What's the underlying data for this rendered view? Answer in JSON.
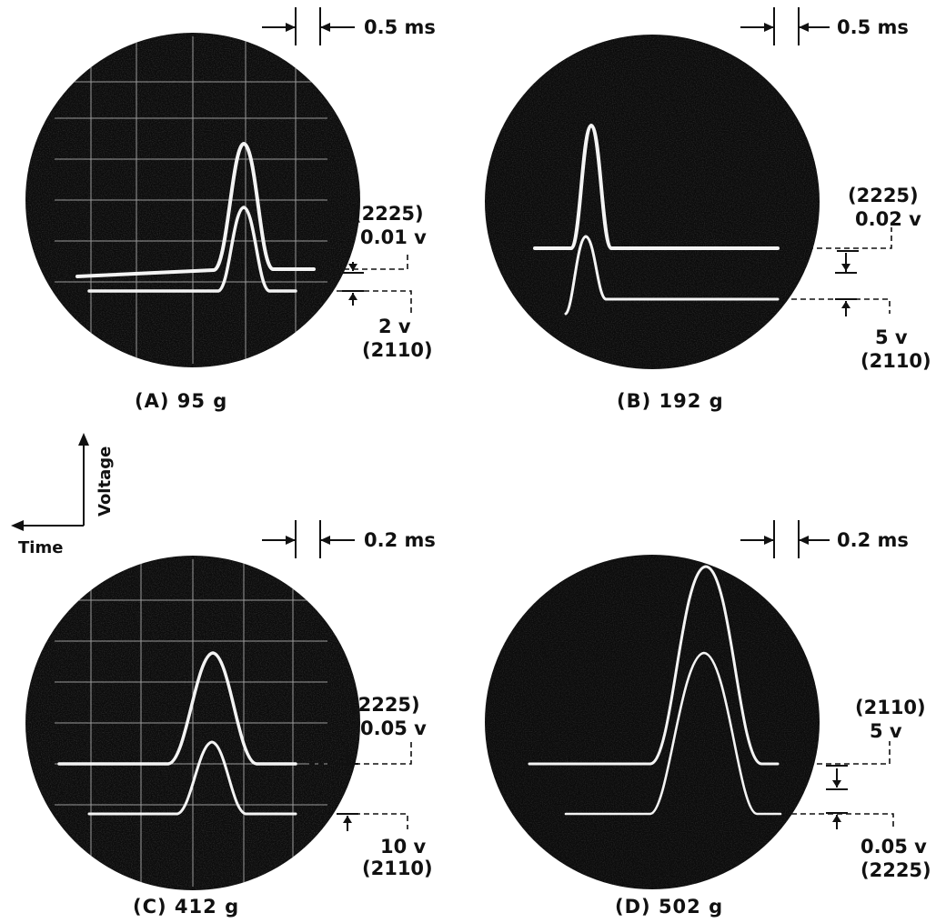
{
  "legend": {
    "vertical_label": "Voltage",
    "horizontal_label": "Time"
  },
  "panels": [
    {
      "id": "a",
      "caption": "(A) 95 g",
      "time_scale": "0.5 ms",
      "upper_label_1": "(2225)",
      "upper_label_2": "0.01 v",
      "lower_label_1": "2 v",
      "lower_label_2": "(2110)",
      "graticule": true
    },
    {
      "id": "b",
      "caption": "(B) 192 g",
      "time_scale": "0.5 ms",
      "upper_label_1": "(2225)",
      "upper_label_2": "0.02 v",
      "lower_label_1": "5 v",
      "lower_label_2": "(2110)",
      "graticule": false
    },
    {
      "id": "c",
      "caption": "(C) 412 g",
      "time_scale": "0.2 ms",
      "upper_label_1": "(2225)",
      "upper_label_2": "0.05 v",
      "lower_label_1": "10 v",
      "lower_label_2": "(2110)",
      "graticule": true
    },
    {
      "id": "d",
      "caption": "(D) 502 g",
      "time_scale": "0.2 ms",
      "upper_label_1": "(2110)",
      "upper_label_2": "5 v",
      "lower_label_1": "0.05 v",
      "lower_label_2": "(2225)",
      "graticule": false
    }
  ],
  "colors": {
    "screen": "#0b0b0b",
    "trace": "#f4f4f4",
    "ink": "#111111"
  }
}
